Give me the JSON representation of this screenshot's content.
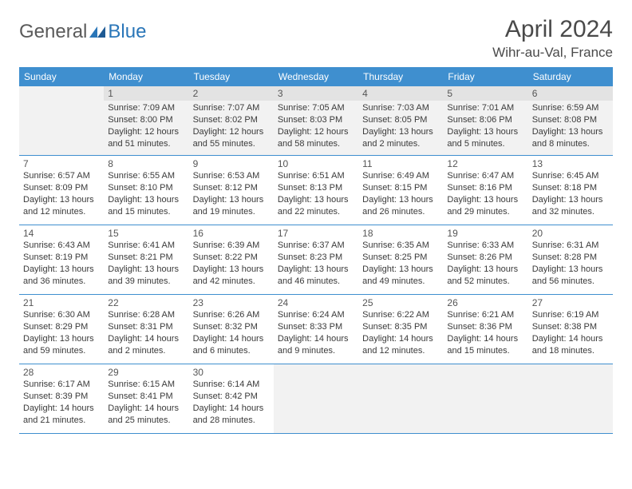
{
  "logo": {
    "word1": "General",
    "word2": "Blue"
  },
  "title": "April 2024",
  "location": "Wihr-au-Val, France",
  "colors": {
    "header_bg": "#3f8fcf",
    "header_text": "#ffffff",
    "border": "#3f8fcf",
    "shaded_bg": "#f2f2f2",
    "text": "#3a3a3a",
    "title_text": "#4a4a4a",
    "logo_gray": "#5a5a5a",
    "logo_blue": "#2a76b8"
  },
  "weekdays": [
    "Sunday",
    "Monday",
    "Tuesday",
    "Wednesday",
    "Thursday",
    "Friday",
    "Saturday"
  ],
  "weeks": [
    [
      {
        "num": "",
        "shaded": true
      },
      {
        "num": "1",
        "shaded": true,
        "sunrise": "Sunrise: 7:09 AM",
        "sunset": "Sunset: 8:00 PM",
        "day1": "Daylight: 12 hours",
        "day2": "and 51 minutes."
      },
      {
        "num": "2",
        "shaded": true,
        "sunrise": "Sunrise: 7:07 AM",
        "sunset": "Sunset: 8:02 PM",
        "day1": "Daylight: 12 hours",
        "day2": "and 55 minutes."
      },
      {
        "num": "3",
        "shaded": true,
        "sunrise": "Sunrise: 7:05 AM",
        "sunset": "Sunset: 8:03 PM",
        "day1": "Daylight: 12 hours",
        "day2": "and 58 minutes."
      },
      {
        "num": "4",
        "shaded": true,
        "sunrise": "Sunrise: 7:03 AM",
        "sunset": "Sunset: 8:05 PM",
        "day1": "Daylight: 13 hours",
        "day2": "and 2 minutes."
      },
      {
        "num": "5",
        "shaded": true,
        "sunrise": "Sunrise: 7:01 AM",
        "sunset": "Sunset: 8:06 PM",
        "day1": "Daylight: 13 hours",
        "day2": "and 5 minutes."
      },
      {
        "num": "6",
        "shaded": true,
        "sunrise": "Sunrise: 6:59 AM",
        "sunset": "Sunset: 8:08 PM",
        "day1": "Daylight: 13 hours",
        "day2": "and 8 minutes."
      }
    ],
    [
      {
        "num": "7",
        "shaded": false,
        "sunrise": "Sunrise: 6:57 AM",
        "sunset": "Sunset: 8:09 PM",
        "day1": "Daylight: 13 hours",
        "day2": "and 12 minutes."
      },
      {
        "num": "8",
        "shaded": false,
        "sunrise": "Sunrise: 6:55 AM",
        "sunset": "Sunset: 8:10 PM",
        "day1": "Daylight: 13 hours",
        "day2": "and 15 minutes."
      },
      {
        "num": "9",
        "shaded": false,
        "sunrise": "Sunrise: 6:53 AM",
        "sunset": "Sunset: 8:12 PM",
        "day1": "Daylight: 13 hours",
        "day2": "and 19 minutes."
      },
      {
        "num": "10",
        "shaded": false,
        "sunrise": "Sunrise: 6:51 AM",
        "sunset": "Sunset: 8:13 PM",
        "day1": "Daylight: 13 hours",
        "day2": "and 22 minutes."
      },
      {
        "num": "11",
        "shaded": false,
        "sunrise": "Sunrise: 6:49 AM",
        "sunset": "Sunset: 8:15 PM",
        "day1": "Daylight: 13 hours",
        "day2": "and 26 minutes."
      },
      {
        "num": "12",
        "shaded": false,
        "sunrise": "Sunrise: 6:47 AM",
        "sunset": "Sunset: 8:16 PM",
        "day1": "Daylight: 13 hours",
        "day2": "and 29 minutes."
      },
      {
        "num": "13",
        "shaded": false,
        "sunrise": "Sunrise: 6:45 AM",
        "sunset": "Sunset: 8:18 PM",
        "day1": "Daylight: 13 hours",
        "day2": "and 32 minutes."
      }
    ],
    [
      {
        "num": "14",
        "shaded": false,
        "sunrise": "Sunrise: 6:43 AM",
        "sunset": "Sunset: 8:19 PM",
        "day1": "Daylight: 13 hours",
        "day2": "and 36 minutes."
      },
      {
        "num": "15",
        "shaded": false,
        "sunrise": "Sunrise: 6:41 AM",
        "sunset": "Sunset: 8:21 PM",
        "day1": "Daylight: 13 hours",
        "day2": "and 39 minutes."
      },
      {
        "num": "16",
        "shaded": false,
        "sunrise": "Sunrise: 6:39 AM",
        "sunset": "Sunset: 8:22 PM",
        "day1": "Daylight: 13 hours",
        "day2": "and 42 minutes."
      },
      {
        "num": "17",
        "shaded": false,
        "sunrise": "Sunrise: 6:37 AM",
        "sunset": "Sunset: 8:23 PM",
        "day1": "Daylight: 13 hours",
        "day2": "and 46 minutes."
      },
      {
        "num": "18",
        "shaded": false,
        "sunrise": "Sunrise: 6:35 AM",
        "sunset": "Sunset: 8:25 PM",
        "day1": "Daylight: 13 hours",
        "day2": "and 49 minutes."
      },
      {
        "num": "19",
        "shaded": false,
        "sunrise": "Sunrise: 6:33 AM",
        "sunset": "Sunset: 8:26 PM",
        "day1": "Daylight: 13 hours",
        "day2": "and 52 minutes."
      },
      {
        "num": "20",
        "shaded": false,
        "sunrise": "Sunrise: 6:31 AM",
        "sunset": "Sunset: 8:28 PM",
        "day1": "Daylight: 13 hours",
        "day2": "and 56 minutes."
      }
    ],
    [
      {
        "num": "21",
        "shaded": false,
        "sunrise": "Sunrise: 6:30 AM",
        "sunset": "Sunset: 8:29 PM",
        "day1": "Daylight: 13 hours",
        "day2": "and 59 minutes."
      },
      {
        "num": "22",
        "shaded": false,
        "sunrise": "Sunrise: 6:28 AM",
        "sunset": "Sunset: 8:31 PM",
        "day1": "Daylight: 14 hours",
        "day2": "and 2 minutes."
      },
      {
        "num": "23",
        "shaded": false,
        "sunrise": "Sunrise: 6:26 AM",
        "sunset": "Sunset: 8:32 PM",
        "day1": "Daylight: 14 hours",
        "day2": "and 6 minutes."
      },
      {
        "num": "24",
        "shaded": false,
        "sunrise": "Sunrise: 6:24 AM",
        "sunset": "Sunset: 8:33 PM",
        "day1": "Daylight: 14 hours",
        "day2": "and 9 minutes."
      },
      {
        "num": "25",
        "shaded": false,
        "sunrise": "Sunrise: 6:22 AM",
        "sunset": "Sunset: 8:35 PM",
        "day1": "Daylight: 14 hours",
        "day2": "and 12 minutes."
      },
      {
        "num": "26",
        "shaded": false,
        "sunrise": "Sunrise: 6:21 AM",
        "sunset": "Sunset: 8:36 PM",
        "day1": "Daylight: 14 hours",
        "day2": "and 15 minutes."
      },
      {
        "num": "27",
        "shaded": false,
        "sunrise": "Sunrise: 6:19 AM",
        "sunset": "Sunset: 8:38 PM",
        "day1": "Daylight: 14 hours",
        "day2": "and 18 minutes."
      }
    ],
    [
      {
        "num": "28",
        "shaded": false,
        "sunrise": "Sunrise: 6:17 AM",
        "sunset": "Sunset: 8:39 PM",
        "day1": "Daylight: 14 hours",
        "day2": "and 21 minutes."
      },
      {
        "num": "29",
        "shaded": false,
        "sunrise": "Sunrise: 6:15 AM",
        "sunset": "Sunset: 8:41 PM",
        "day1": "Daylight: 14 hours",
        "day2": "and 25 minutes."
      },
      {
        "num": "30",
        "shaded": false,
        "sunrise": "Sunrise: 6:14 AM",
        "sunset": "Sunset: 8:42 PM",
        "day1": "Daylight: 14 hours",
        "day2": "and 28 minutes."
      },
      {
        "num": "",
        "shaded": true
      },
      {
        "num": "",
        "shaded": true
      },
      {
        "num": "",
        "shaded": true
      },
      {
        "num": "",
        "shaded": true
      }
    ]
  ]
}
